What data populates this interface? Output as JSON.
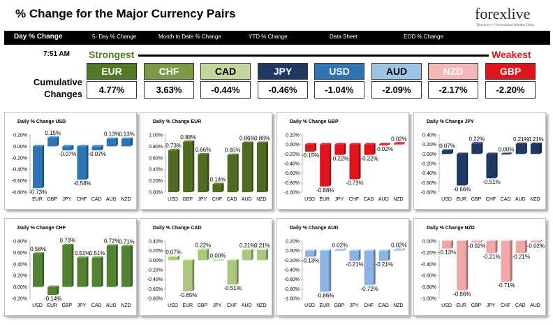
{
  "header": {
    "title": "% Change for the Major Currency Pairs",
    "logo_word": "forexlive",
    "logo_tagline": "Tomorrow's Conventional Wisdom Today"
  },
  "nav": [
    {
      "label": "Day % Change",
      "active": true
    },
    {
      "label": "5- Day % Change",
      "active": false
    },
    {
      "label": "Month to Date % Change",
      "active": false
    },
    {
      "label": "YTD % Change",
      "active": false
    },
    {
      "label": "Data Sheet",
      "active": false
    },
    {
      "label": "EOD % Change",
      "active": false
    }
  ],
  "strength": {
    "time": "7:51 AM",
    "strongest_label": "Strongest",
    "weakest_label": "Weakest",
    "cumulative_label": "Cumulative Changes",
    "pairs": [
      {
        "name": "EUR",
        "value": "4.77%",
        "color": "#4e7a23",
        "text_color": "#ffffff"
      },
      {
        "name": "CHF",
        "value": "3.63%",
        "color": "#7a9c45",
        "text_color": "#ffffff"
      },
      {
        "name": "CAD",
        "value": "-0.44%",
        "color": "#c3d69b",
        "text_color": "#000000"
      },
      {
        "name": "JPY",
        "value": "-0.46%",
        "color": "#1f3864",
        "text_color": "#ffffff"
      },
      {
        "name": "USD",
        "value": "-1.04%",
        "color": "#2e75b6",
        "text_color": "#ffffff"
      },
      {
        "name": "AUD",
        "value": "-2.09%",
        "color": "#9dc3e6",
        "text_color": "#000000"
      },
      {
        "name": "NZD",
        "value": "-2.17%",
        "color": "#f4b6b6",
        "text_color": "#ffffff"
      },
      {
        "name": "GBP",
        "value": "-2.20%",
        "color": "#e0141c",
        "text_color": "#ffffff"
      }
    ]
  },
  "chart_data": [
    {
      "type": "bar",
      "title": "Daily % Change USD",
      "color": "#2e75b6",
      "categories": [
        "EUR",
        "GBP",
        "JPY",
        "CHF",
        "CAD",
        "AUD",
        "NZD"
      ],
      "values": [
        -0.73,
        0.15,
        -0.07,
        -0.58,
        -0.07,
        0.13,
        0.13
      ],
      "labels": [
        "-0.73%",
        "0.15%",
        "-0.07%",
        "-0.58%",
        "-0.07%",
        "0.13%",
        "0.13%"
      ],
      "ylim": [
        -0.8,
        0.2
      ],
      "ticks": [
        0.2,
        0.0,
        -0.2,
        -0.4,
        -0.6,
        -0.8
      ],
      "tick_labels": [
        "0.20%",
        "0.00%",
        "-0.20%",
        "-0.40%",
        "-0.60%",
        "-0.80%"
      ]
    },
    {
      "type": "bar",
      "title": "Daily % Change EUR",
      "color": "#4e6b22",
      "categories": [
        "USD",
        "GBP",
        "JPY",
        "CHF",
        "CAD",
        "AUD",
        "NZD"
      ],
      "values": [
        0.73,
        0.88,
        0.66,
        0.14,
        0.65,
        0.86,
        0.86
      ],
      "labels": [
        "0.73%",
        "0.88%",
        "0.66%",
        "0.14%",
        "0.65%",
        "0.86%",
        "0.86%"
      ],
      "ylim": [
        0,
        1.0
      ],
      "ticks": [
        1.0,
        0.8,
        0.6,
        0.4,
        0.2,
        0.0
      ],
      "tick_labels": [
        "1.00%",
        "0.80%",
        "0.60%",
        "0.40%",
        "0.20%",
        "0.00%"
      ]
    },
    {
      "type": "bar",
      "title": "Daily % Change GBP",
      "color": "#e0141c",
      "categories": [
        "USD",
        "EUR",
        "JPY",
        "CHF",
        "CAD",
        "AUD",
        "NZD"
      ],
      "values": [
        -0.15,
        -0.88,
        -0.22,
        -0.73,
        -0.22,
        -0.02,
        0.02
      ],
      "labels": [
        "-0.15%",
        "-0.88%",
        "-0.22%",
        "-0.73%",
        "-0.22%",
        "-0.02%",
        "0.02%"
      ],
      "ylim": [
        -1.0,
        0.2
      ],
      "ticks": [
        0.2,
        0.0,
        -0.2,
        -0.4,
        -0.6,
        -0.8,
        -1.0
      ],
      "tick_labels": [
        "0.20%",
        "0.00%",
        "-0.20%",
        "-0.40%",
        "-0.60%",
        "-0.80%",
        "-1.00%"
      ]
    },
    {
      "type": "bar",
      "title": "Daily % Change JPY",
      "color": "#1f3864",
      "categories": [
        "USD",
        "EUR",
        "GBP",
        "CHF",
        "CAD",
        "AUD",
        "NZD"
      ],
      "values": [
        0.07,
        -0.66,
        0.22,
        -0.51,
        0.0,
        0.21,
        0.21
      ],
      "labels": [
        "0.07%",
        "-0.66%",
        "0.22%",
        "-0.51%",
        "0.00%",
        "0.21%",
        "0.21%"
      ],
      "ylim": [
        -0.8,
        0.4
      ],
      "ticks": [
        0.4,
        0.2,
        0.0,
        -0.2,
        -0.4,
        -0.6,
        -0.8
      ],
      "tick_labels": [
        "0.40%",
        "0.20%",
        "0.00%",
        "-0.20%",
        "-0.40%",
        "-0.60%",
        "-0.80%"
      ]
    },
    {
      "type": "bar",
      "title": "Daily % Change CHF",
      "color": "#548235",
      "categories": [
        "USD",
        "EUR",
        "GBP",
        "JPY",
        "CAD",
        "AUD",
        "NZD"
      ],
      "values": [
        0.58,
        -0.14,
        0.73,
        0.51,
        0.51,
        0.72,
        0.71
      ],
      "labels": [
        "0.58%",
        "-0.14%",
        "0.73%",
        "0.51%",
        "0.51%",
        "0.72%",
        "0.71%"
      ],
      "ylim": [
        -0.2,
        0.8
      ],
      "ticks": [
        0.8,
        0.6,
        0.4,
        0.2,
        0.0,
        -0.2
      ],
      "tick_labels": [
        "0.80%",
        "0.60%",
        "0.40%",
        "0.20%",
        "0.00%",
        "-0.20%"
      ]
    },
    {
      "type": "bar",
      "title": "Daily % Change CAD",
      "color": "#a9c77f",
      "categories": [
        "USD",
        "EUR",
        "GBP",
        "JPY",
        "CHF",
        "AUD",
        "NZD"
      ],
      "values": [
        0.07,
        -0.65,
        0.22,
        0.0,
        -0.51,
        0.21,
        0.21
      ],
      "labels": [
        "0.07%",
        "-0.65%",
        "0.22%",
        "0.00%",
        "-0.51%",
        "0.21%",
        "0.21%"
      ],
      "ylim": [
        -0.8,
        0.4
      ],
      "ticks": [
        0.4,
        0.2,
        0.0,
        -0.2,
        -0.4,
        -0.6,
        -0.8
      ],
      "tick_labels": [
        "0.40%",
        "0.20%",
        "0.00%",
        "-0.20%",
        "-0.40%",
        "-0.60%",
        "-0.80%"
      ]
    },
    {
      "type": "bar",
      "title": "Daily % Change AUD",
      "color": "#8db4e2",
      "categories": [
        "USD",
        "EUR",
        "GBP",
        "JPY",
        "CHF",
        "CAD",
        "NZD"
      ],
      "values": [
        -0.13,
        -0.86,
        0.02,
        -0.21,
        -0.72,
        -0.21,
        0.02
      ],
      "labels": [
        "-0.13%",
        "-0.86%",
        "0.02%",
        "-0.21%",
        "-0.72%",
        "-0.21%",
        "0.02%"
      ],
      "ylim": [
        -1.0,
        0.2
      ],
      "ticks": [
        0.2,
        0.0,
        -0.2,
        -0.4,
        -0.6,
        -0.8,
        -1.0
      ],
      "tick_labels": [
        "0.20%",
        "0.00%",
        "-0.20%",
        "-0.40%",
        "-0.60%",
        "-0.80%",
        "-1.00%"
      ]
    },
    {
      "type": "bar",
      "title": "Daily % Change NZD",
      "color": "#f2a7a7",
      "categories": [
        "USD",
        "EUR",
        "GBP",
        "JPY",
        "CHF",
        "CAD",
        "AUD"
      ],
      "values": [
        -0.13,
        -0.86,
        -0.02,
        -0.21,
        -0.71,
        -0.21,
        -0.02
      ],
      "labels": [
        "-0.13%",
        "-0.86%",
        "-0.02%",
        "-0.21%",
        "-0.71%",
        "-0.21%",
        "-0.02%"
      ],
      "ylim": [
        -1.0,
        0.0
      ],
      "ticks": [
        0.0,
        -0.2,
        -0.4,
        -0.6,
        -0.8,
        -1.0
      ],
      "tick_labels": [
        "0.00%",
        "-0.20%",
        "-0.40%",
        "-0.60%",
        "-0.80%",
        "-1.00%"
      ]
    }
  ]
}
